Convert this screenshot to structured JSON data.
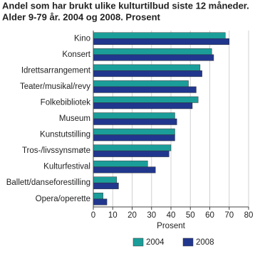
{
  "chart_data": {
    "type": "bar",
    "orientation": "horizontal",
    "title": [
      "Andel som har brukt ulike kulturtilbud siste 12 måneder.",
      "Alder 9-79 år. 2004 og 2008. Prosent"
    ],
    "categories": [
      "Kino",
      "Konsert",
      "Idrettsarrangement",
      "Teater/musikal/revy",
      "Folkebibliotek",
      "Museum",
      "Kunstutstilling",
      "Tros-/livssynsmøte",
      "Kulturfestival",
      "Ballett/danseforestilling",
      "Opera/operette"
    ],
    "series": [
      {
        "name": "2004",
        "color": "#1b9e9a",
        "values": [
          68,
          61,
          55,
          49,
          54,
          42,
          42,
          40,
          28,
          12,
          5
        ]
      },
      {
        "name": "2008",
        "color": "#21378e",
        "values": [
          70,
          62,
          56,
          53,
          51,
          43,
          42,
          39,
          32,
          13,
          7
        ]
      }
    ],
    "xlabel": "Prosent",
    "xlim": [
      0,
      80
    ],
    "xticks": [
      0,
      10,
      20,
      30,
      40,
      50,
      60,
      70,
      80
    ],
    "grid": true,
    "legend": "bottom"
  }
}
